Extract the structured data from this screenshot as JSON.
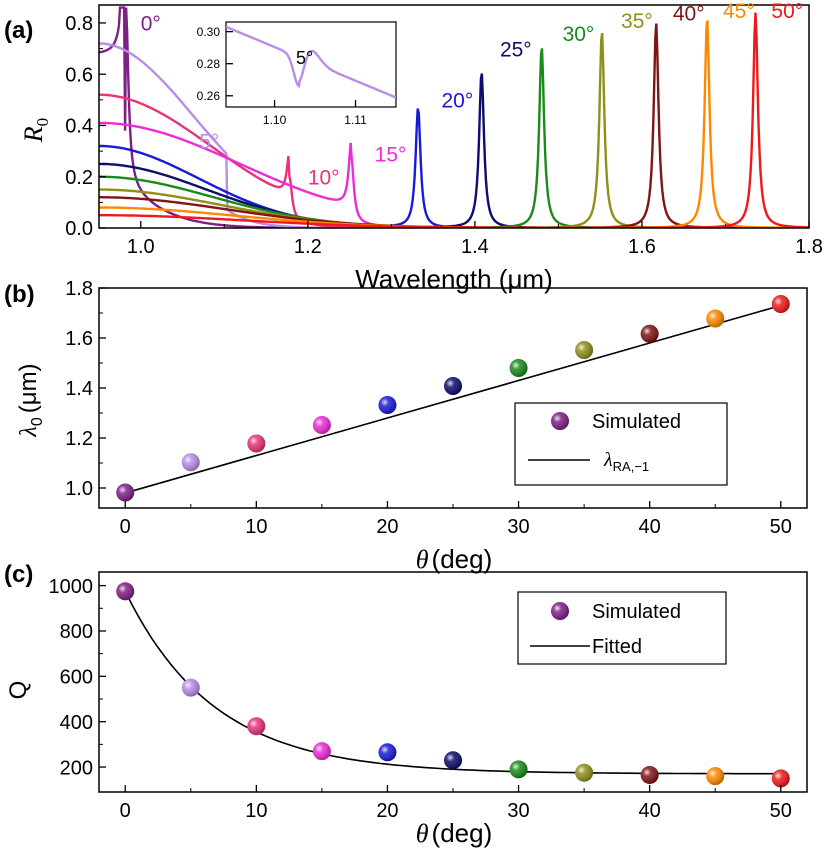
{
  "colors": {
    "0": "#7f1f86",
    "5": "#b98ce8",
    "10": "#e8327a",
    "15": "#ee2bd6",
    "20": "#1a1ad6",
    "25": "#0d0d6e",
    "30": "#1a8a1a",
    "35": "#8f8f1a",
    "40": "#7f1414",
    "45": "#ff8800",
    "50": "#ee1a1a",
    "fit": "#000000"
  },
  "chart_data": [
    {
      "id": "a",
      "panel_label": "(a)",
      "type": "line",
      "xlabel": "Wavelength (μm)",
      "ylabel": "R",
      "ylabel_sub": "0",
      "xlim": [
        0.95,
        1.8
      ],
      "ylim": [
        0,
        0.87
      ],
      "xticks": [
        "1.0",
        "1.2",
        "1.4",
        "1.6",
        "1.8"
      ],
      "xtick_values": [
        1.0,
        1.2,
        1.4,
        1.6,
        1.8
      ],
      "yticks": [
        "0.0",
        "0.2",
        "0.4",
        "0.6",
        "0.8"
      ],
      "ytick_values": [
        0,
        0.2,
        0.4,
        0.6,
        0.8
      ],
      "series": [
        {
          "name": "0°",
          "angle": 0,
          "base": 0.72,
          "decay": 0.05,
          "peak_x": 0.982,
          "peak_h": 0.72,
          "label_pos": [
            1.0,
            0.77
          ]
        },
        {
          "name": "5°",
          "angle": 5,
          "base": 0.72,
          "decay": 0.055,
          "peak_x": 1.103,
          "peak_h": 0.0,
          "label_pos": [
            1.07,
            0.31
          ]
        },
        {
          "name": "10°",
          "angle": 10,
          "base": 0.52,
          "decay": 0.08,
          "peak_x": 1.178,
          "peak_h": 0.17,
          "label_pos": [
            1.2,
            0.17
          ]
        },
        {
          "name": "15°",
          "angle": 15,
          "base": 0.41,
          "decay": 0.1,
          "peak_x": 1.252,
          "peak_h": 0.26,
          "label_pos": [
            1.28,
            0.26
          ]
        },
        {
          "name": "20°",
          "angle": 20,
          "base": 0.32,
          "decay": 0.07,
          "peak_x": 1.332,
          "peak_h": 0.47,
          "label_pos": [
            1.36,
            0.47
          ]
        },
        {
          "name": "25°",
          "angle": 25,
          "base": 0.25,
          "decay": 0.075,
          "peak_x": 1.408,
          "peak_h": 0.61,
          "label_pos": [
            1.43,
            0.67
          ]
        },
        {
          "name": "30°",
          "angle": 30,
          "base": 0.2,
          "decay": 0.08,
          "peak_x": 1.48,
          "peak_h": 0.71,
          "label_pos": [
            1.505,
            0.73
          ]
        },
        {
          "name": "35°",
          "angle": 35,
          "base": 0.15,
          "decay": 0.085,
          "peak_x": 1.552,
          "peak_h": 0.77,
          "label_pos": [
            1.575,
            0.78
          ]
        },
        {
          "name": "40°",
          "angle": 40,
          "base": 0.12,
          "decay": 0.09,
          "peak_x": 1.617,
          "peak_h": 0.8,
          "label_pos": [
            1.637,
            0.81
          ]
        },
        {
          "name": "45°",
          "angle": 45,
          "base": 0.08,
          "decay": 0.095,
          "peak_x": 1.678,
          "peak_h": 0.82,
          "label_pos": [
            1.697,
            0.82
          ]
        },
        {
          "name": "50°",
          "angle": 50,
          "base": 0.05,
          "decay": 0.1,
          "peak_x": 1.736,
          "peak_h": 0.84,
          "label_pos": [
            1.755,
            0.82
          ]
        }
      ],
      "inset": {
        "xlim": [
          1.094,
          1.115
        ],
        "ylim": [
          0.253,
          0.306
        ],
        "xticks": [
          "1.10",
          "1.11"
        ],
        "xtick_values": [
          1.1,
          1.11
        ],
        "yticks": [
          "0.26",
          "0.28",
          "0.30"
        ],
        "ytick_values": [
          0.26,
          0.28,
          0.3
        ],
        "label": "5°",
        "series": {
          "angle": 5,
          "dip_x": 1.103,
          "dip_depth": 0.018
        }
      }
    },
    {
      "id": "b",
      "panel_label": "(b)",
      "type": "scatter",
      "xlabel": "(deg)",
      "xlabel_symbol": "θ",
      "ylabel": "(μm)",
      "ylabel_symbol": "λ",
      "ylabel_sub": "0",
      "xlim": [
        -2,
        52
      ],
      "ylim": [
        0.92,
        1.8
      ],
      "xticks": [
        "0",
        "10",
        "20",
        "30",
        "40",
        "50"
      ],
      "xtick_values": [
        0,
        10,
        20,
        30,
        40,
        50
      ],
      "yticks": [
        "1.0",
        "1.2",
        "1.4",
        "1.6",
        "1.8"
      ],
      "ytick_values": [
        1.0,
        1.2,
        1.4,
        1.6,
        1.8
      ],
      "x": [
        0,
        5,
        10,
        15,
        20,
        25,
        30,
        35,
        40,
        45,
        50
      ],
      "y": [
        0.982,
        1.103,
        1.178,
        1.252,
        1.332,
        1.408,
        1.48,
        1.552,
        1.617,
        1.678,
        1.736
      ],
      "fit": {
        "x": [
          0,
          50
        ],
        "y": [
          0.98,
          1.73
        ]
      },
      "legend": {
        "points": "Simulated",
        "line": "λ",
        "line_sub": "RA,−1",
        "position": "right"
      }
    },
    {
      "id": "c",
      "panel_label": "(c)",
      "type": "scatter",
      "xlabel": "(deg)",
      "xlabel_symbol": "θ",
      "ylabel": "Q",
      "xlim": [
        -2,
        52
      ],
      "ylim": [
        90,
        1060
      ],
      "xticks": [
        "0",
        "10",
        "20",
        "30",
        "40",
        "50"
      ],
      "xtick_values": [
        0,
        10,
        20,
        30,
        40,
        50
      ],
      "yticks": [
        "200",
        "400",
        "600",
        "800",
        "1000"
      ],
      "ytick_values": [
        200,
        400,
        600,
        800,
        1000
      ],
      "x": [
        0,
        5,
        10,
        15,
        20,
        25,
        30,
        35,
        40,
        45,
        50
      ],
      "y": [
        975,
        550,
        380,
        270,
        265,
        230,
        190,
        175,
        165,
        160,
        150
      ],
      "fit": {
        "type": "exponential",
        "y0": 170,
        "A": 805,
        "tau": 6.8
      },
      "legend": {
        "points": "Simulated",
        "line": "Fitted",
        "position": "top-right"
      }
    }
  ]
}
